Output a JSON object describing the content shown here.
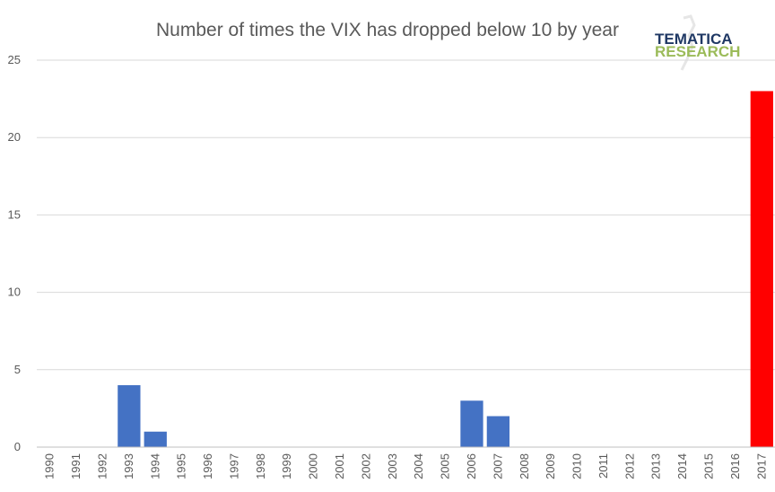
{
  "chart_data": {
    "type": "bar",
    "title": "Number of times the VIX has dropped below 10 by year",
    "categories": [
      "1990",
      "1991",
      "1992",
      "1993",
      "1994",
      "1995",
      "1996",
      "1997",
      "1998",
      "1999",
      "2000",
      "2001",
      "2002",
      "2003",
      "2004",
      "2005",
      "2006",
      "2007",
      "2008",
      "2009",
      "2010",
      "2011",
      "2012",
      "2013",
      "2014",
      "2015",
      "2016",
      "2017"
    ],
    "values": [
      0,
      0,
      0,
      4,
      1,
      0,
      0,
      0,
      0,
      0,
      0,
      0,
      0,
      0,
      0,
      0,
      3,
      2,
      0,
      0,
      0,
      0,
      0,
      0,
      0,
      0,
      0,
      23
    ],
    "ylim": [
      0,
      25
    ],
    "yticks": [
      0,
      5,
      10,
      15,
      20,
      25
    ],
    "grid": true,
    "colors": {
      "default": "#4472c4",
      "highlight": "#ff0000"
    },
    "highlight_category": "2017"
  },
  "logo": {
    "line1": "TEMATICA",
    "line2": "RESEARCH"
  }
}
